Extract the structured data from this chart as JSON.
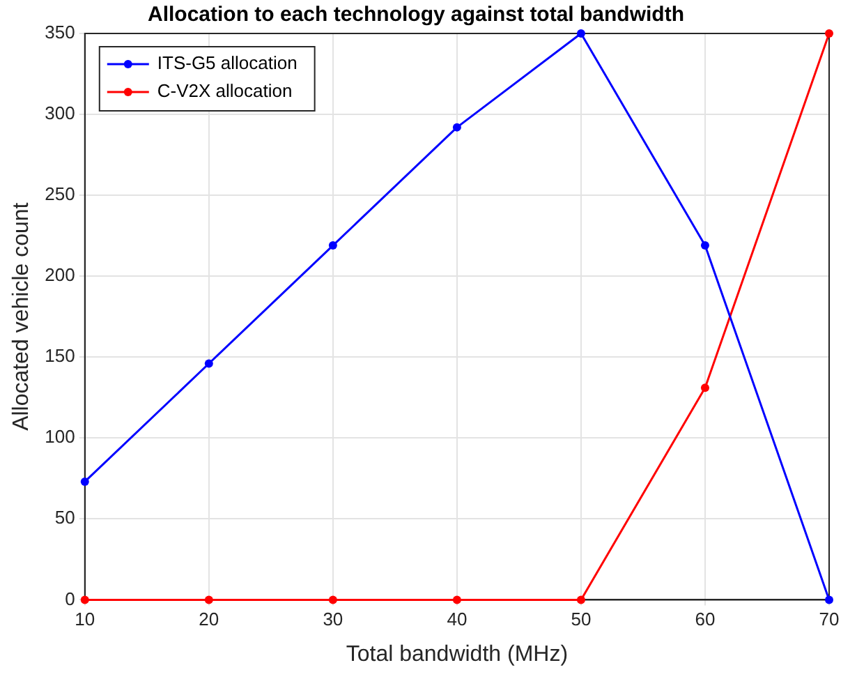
{
  "chart_data": {
    "type": "line",
    "title": "Allocation to each technology against total bandwidth",
    "xlabel": "Total bandwidth (MHz)",
    "ylabel": "Allocated vehicle count",
    "x": [
      10,
      20,
      30,
      40,
      50,
      60,
      70
    ],
    "series": [
      {
        "name": "ITS-G5 allocation",
        "color": "#0000ff",
        "values": [
          73,
          146,
          219,
          292,
          350,
          219,
          0
        ]
      },
      {
        "name": "C-V2X allocation",
        "color": "#ff0000",
        "values": [
          0,
          0,
          0,
          0,
          0,
          131,
          350
        ]
      }
    ],
    "xlim": [
      10,
      70
    ],
    "xticks": [
      10,
      20,
      30,
      40,
      50,
      60,
      70
    ],
    "ylim": [
      0,
      350
    ],
    "yticks": [
      0,
      50,
      100,
      150,
      200,
      250,
      300,
      350
    ],
    "grid": true,
    "legend": "top left",
    "marker": "circle",
    "line_style": "solid"
  }
}
